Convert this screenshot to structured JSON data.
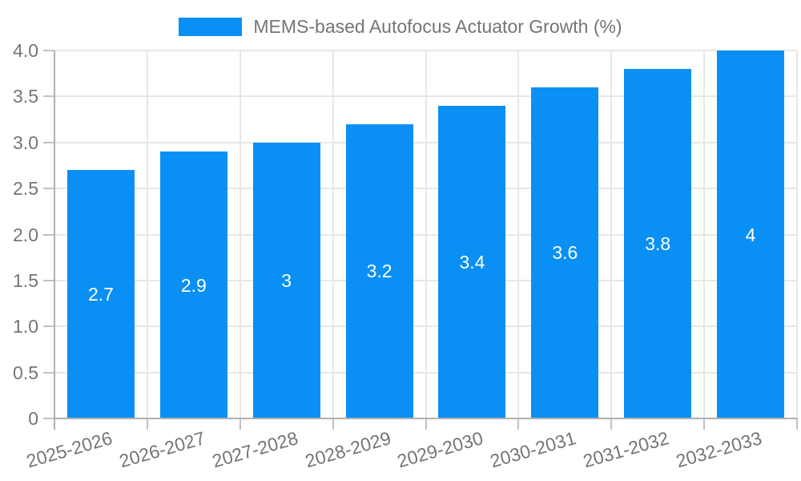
{
  "chart_data": {
    "type": "bar",
    "title": "MEMS-based Autofocus Actuator Growth (%)",
    "categories": [
      "2025-2026",
      "2026-2027",
      "2027-2028",
      "2028-2029",
      "2029-2030",
      "2030-2031",
      "2031-2032",
      "2032-2033"
    ],
    "values": [
      2.7,
      2.9,
      3,
      3.2,
      3.4,
      3.6,
      3.8,
      4
    ],
    "bar_labels": [
      "2.7",
      "2.9",
      "3",
      "3.2",
      "3.4",
      "3.6",
      "3.8",
      "4"
    ],
    "xlabel": "",
    "ylabel": "",
    "ylim": [
      0,
      4
    ],
    "y_tick_step": 0.5,
    "y_tick_labels": [
      "0",
      "0.5",
      "1.0",
      "1.5",
      "2.0",
      "2.5",
      "3.0",
      "3.5",
      "4.0"
    ],
    "grid": true,
    "legend_position": "top",
    "colors": {
      "bar": "#0a90f5",
      "grid": "#e7e7e7",
      "axis": "#b0b0b0",
      "tick_mark": "#c2c2c2",
      "tick_label": "#757575",
      "legend_text": "#757575",
      "bar_label": "#ffffff",
      "background": "#ffffff"
    }
  }
}
